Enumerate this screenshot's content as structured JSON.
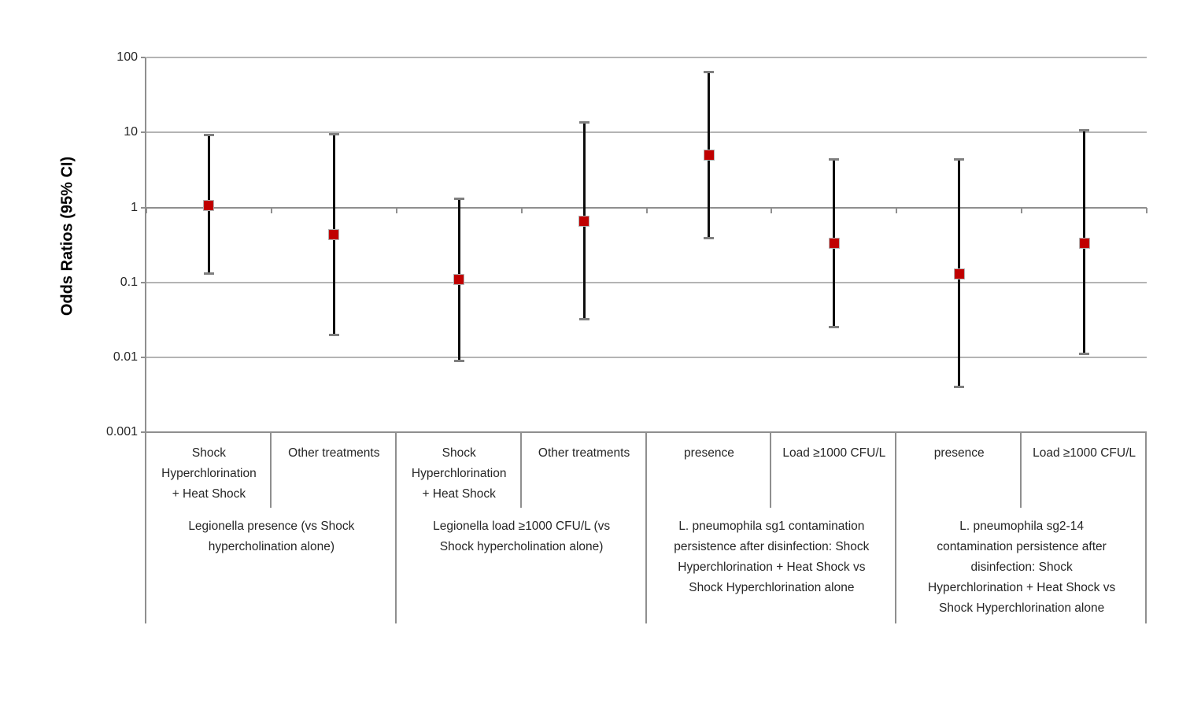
{
  "chart_data": {
    "type": "scatter",
    "subtype": "forest-plot-odds-ratios-with-95ci-error-bars",
    "title": "",
    "ylabel": "Odds Ratios (95% CI)",
    "xlabel": "",
    "y_scale": "log",
    "ylim": [
      0.001,
      100
    ],
    "y_ticks": [
      {
        "value": 100,
        "label": "100"
      },
      {
        "value": 10,
        "label": "10"
      },
      {
        "value": 1,
        "label": "1"
      },
      {
        "value": 0.1,
        "label": "0.1"
      },
      {
        "value": 0.01,
        "label": "0.01"
      },
      {
        "value": 0.001,
        "label": "0.001"
      }
    ],
    "grid": "horizontal gridlines at powers of 10",
    "legend": "none",
    "category_axis_crosses_at": 1,
    "colors": {
      "marker": "#c00000",
      "error_bar": "#0d0d0d",
      "error_bar_cap": "#7f7f7f",
      "gridline": "#b4b4b4",
      "axis_line": "#8f8f8f",
      "text": "#262626"
    },
    "groups": [
      {
        "label": "Legionella presence (vs Shock\nhypercholination alone)",
        "points": [
          {
            "category": "Shock\nHyperchlorination\n+ Heat Shock",
            "or": 1.05,
            "ci_low": 0.13,
            "ci_high": 9.2
          },
          {
            "category": "Other treatments",
            "or": 0.43,
            "ci_low": 0.02,
            "ci_high": 9.6
          }
        ]
      },
      {
        "label": "Legionella load ≥1000 CFU/L (vs\nShock hypercholination alone)",
        "points": [
          {
            "category": "Shock\nHyperchlorination\n+ Heat Shock",
            "or": 0.11,
            "ci_low": 0.009,
            "ci_high": 1.3
          },
          {
            "category": "Other treatments",
            "or": 0.65,
            "ci_low": 0.032,
            "ci_high": 13.6
          }
        ]
      },
      {
        "label": "L. pneumophila sg1 contamination\npersistence after disinfection: Shock\nHyperchlorination + Heat Shock vs\nShock Hyperchlorination alone",
        "points": [
          {
            "category": "presence",
            "or": 5.0,
            "ci_low": 0.39,
            "ci_high": 64
          },
          {
            "category": "Load ≥1000 CFU/L",
            "or": 0.33,
            "ci_low": 0.025,
            "ci_high": 4.4
          }
        ]
      },
      {
        "label": "L. pneumophila sg2-14\ncontamination persistence after\ndisinfection: Shock\nHyperchlorination + Heat Shock vs\nShock Hyperchlorination alone",
        "points": [
          {
            "category": "presence",
            "or": 0.13,
            "ci_low": 0.004,
            "ci_high": 4.4
          },
          {
            "category": "Load ≥1000 CFU/L",
            "or": 0.33,
            "ci_low": 0.011,
            "ci_high": 10.8
          }
        ]
      }
    ]
  }
}
